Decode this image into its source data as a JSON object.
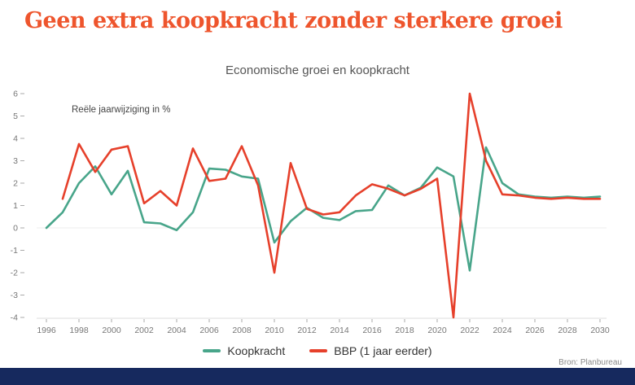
{
  "page": {
    "title": "Geen extra koopkracht zonder sterkere groei",
    "source": "Bron: Planbureau"
  },
  "colors": {
    "title": "#ee552d",
    "koopkracht": "#48a58a",
    "bbp": "#e6402b",
    "bottom_bar": "#16295e",
    "axis_text": "#777777",
    "tick": "#aaaaaa",
    "baseline": "#dddddd",
    "zero_line": "#eeeeee"
  },
  "chart_data": {
    "type": "line",
    "title": "Economische groei en koopkracht",
    "annotation": "Reële jaarwijziging in %",
    "xlabel": "",
    "ylabel": "",
    "ylim": [
      -4,
      6
    ],
    "y_ticks": [
      -4,
      -3,
      -2,
      -1,
      0,
      1,
      2,
      3,
      4,
      5,
      6
    ],
    "x_ticks": [
      1996,
      1998,
      2000,
      2002,
      2004,
      2006,
      2008,
      2010,
      2012,
      2014,
      2016,
      2018,
      2020,
      2022,
      2024,
      2026,
      2028,
      2030
    ],
    "grid": false,
    "legend_position": "bottom",
    "x": [
      1996,
      1997,
      1998,
      1999,
      2000,
      2001,
      2002,
      2003,
      2004,
      2005,
      2006,
      2007,
      2008,
      2009,
      2010,
      2011,
      2012,
      2013,
      2014,
      2015,
      2016,
      2017,
      2018,
      2019,
      2020,
      2021,
      2022,
      2023,
      2024,
      2025,
      2026,
      2027,
      2028,
      2029,
      2030
    ],
    "series": [
      {
        "name": "Koopkracht",
        "color": "#48a58a",
        "values": [
          0.0,
          0.7,
          2.0,
          2.75,
          1.5,
          2.55,
          0.25,
          0.2,
          -0.1,
          0.7,
          2.65,
          2.6,
          2.3,
          2.2,
          -0.65,
          0.3,
          0.9,
          0.45,
          0.35,
          0.75,
          0.8,
          1.9,
          1.45,
          1.8,
          2.7,
          2.3,
          -1.9,
          3.6,
          2.0,
          1.5,
          1.4,
          1.35,
          1.4,
          1.35,
          1.4
        ]
      },
      {
        "name": "BBP (1 jaar eerder)",
        "color": "#e6402b",
        "values": [
          null,
          1.3,
          3.75,
          2.5,
          3.5,
          3.65,
          1.1,
          1.65,
          1.0,
          3.55,
          2.1,
          2.2,
          3.65,
          1.9,
          -2.0,
          2.9,
          0.85,
          0.6,
          0.7,
          1.45,
          1.95,
          1.75,
          1.45,
          1.75,
          2.2,
          -4.0,
          6.0,
          3.0,
          1.5,
          1.45,
          1.35,
          1.3,
          1.35,
          1.3,
          1.3
        ]
      }
    ]
  }
}
